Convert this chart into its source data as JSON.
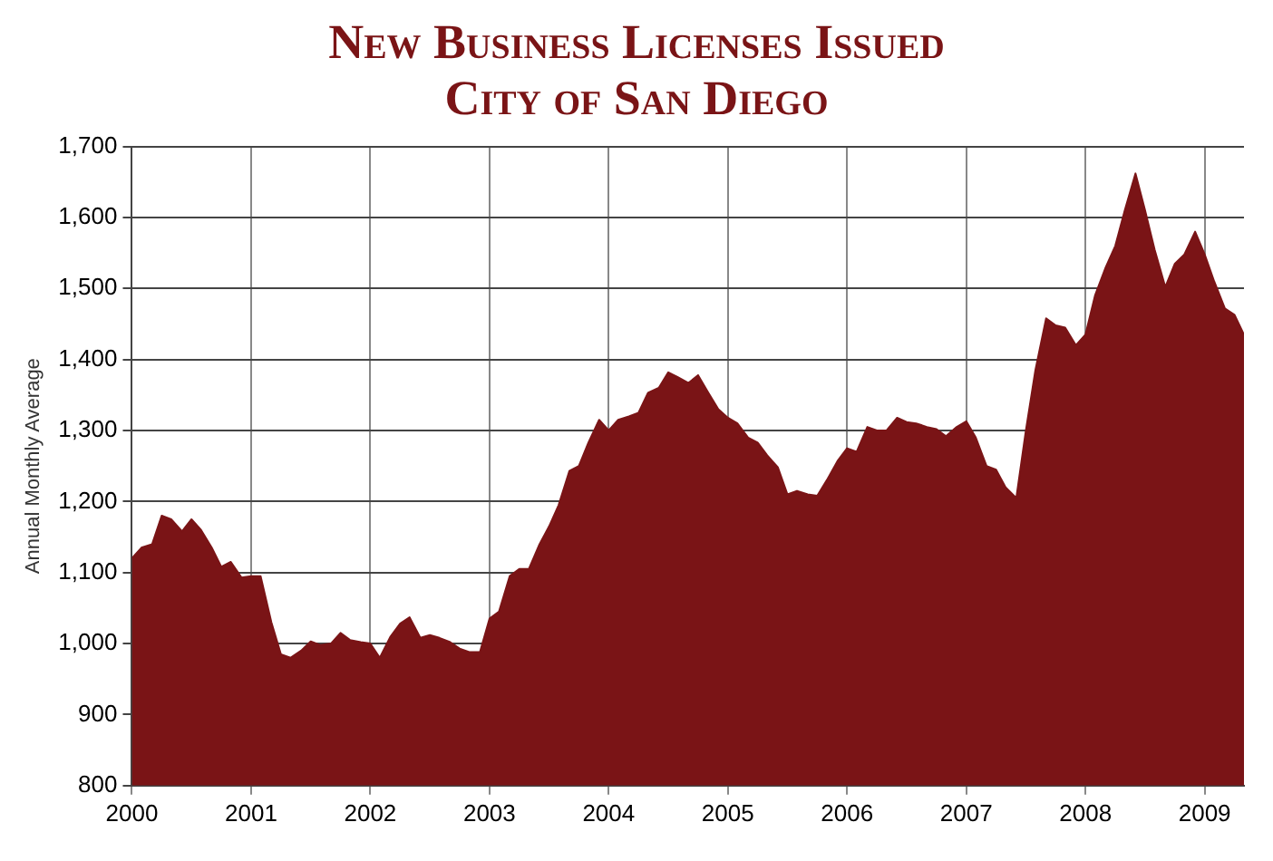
{
  "chart_data": {
    "type": "area",
    "title": "New Business Licenses Issued",
    "subtitle": "City of San Diego",
    "ylabel": "Annual Monthly Average",
    "x": [
      2000,
      2000.08,
      2000.17,
      2000.25,
      2000.33,
      2000.42,
      2000.5,
      2000.58,
      2000.67,
      2000.75,
      2000.83,
      2000.92,
      2001,
      2001.08,
      2001.17,
      2001.25,
      2001.33,
      2001.42,
      2001.5,
      2001.58,
      2001.67,
      2001.75,
      2001.83,
      2001.92,
      2002,
      2002.08,
      2002.17,
      2002.25,
      2002.33,
      2002.42,
      2002.5,
      2002.58,
      2002.67,
      2002.75,
      2002.83,
      2002.92,
      2003,
      2003.08,
      2003.17,
      2003.25,
      2003.33,
      2003.42,
      2003.5,
      2003.58,
      2003.67,
      2003.75,
      2003.83,
      2003.92,
      2004,
      2004.08,
      2004.17,
      2004.25,
      2004.33,
      2004.42,
      2004.5,
      2004.58,
      2004.67,
      2004.75,
      2004.83,
      2004.92,
      2005,
      2005.08,
      2005.17,
      2005.25,
      2005.33,
      2005.42,
      2005.5,
      2005.58,
      2005.67,
      2005.75,
      2005.83,
      2005.92,
      2006,
      2006.08,
      2006.17,
      2006.25,
      2006.33,
      2006.42,
      2006.5,
      2006.58,
      2006.67,
      2006.75,
      2006.83,
      2006.92,
      2007,
      2007.08,
      2007.17,
      2007.25,
      2007.33,
      2007.42,
      2007.5,
      2007.58,
      2007.67,
      2007.75,
      2007.83,
      2007.92,
      2008,
      2008.08,
      2008.17,
      2008.25,
      2008.33,
      2008.42,
      2008.5,
      2008.58,
      2008.67,
      2008.75,
      2008.83,
      2008.92,
      2009,
      2009.08,
      2009.17,
      2009.25,
      2009.33
    ],
    "series": [
      {
        "color": "#7a1416",
        "values": [
          1120,
          1135,
          1140,
          1180,
          1175,
          1158,
          1175,
          1160,
          1135,
          1108,
          1115,
          1093,
          1095,
          1095,
          1030,
          985,
          980,
          990,
          1003,
          998,
          1000,
          1015,
          1005,
          1002,
          1000,
          980,
          1010,
          1028,
          1037,
          1008,
          1012,
          1008,
          1002,
          993,
          988,
          988,
          1035,
          1045,
          1095,
          1105,
          1105,
          1140,
          1165,
          1195,
          1243,
          1250,
          1283,
          1315,
          1300,
          1315,
          1320,
          1325,
          1353,
          1360,
          1382,
          1375,
          1367,
          1378,
          1355,
          1330,
          1318,
          1310,
          1290,
          1283,
          1265,
          1248,
          1210,
          1215,
          1210,
          1208,
          1230,
          1257,
          1275,
          1270,
          1305,
          1300,
          1300,
          1318,
          1312,
          1310,
          1305,
          1302,
          1292,
          1305,
          1313,
          1290,
          1250,
          1245,
          1220,
          1205,
          1300,
          1385,
          1458,
          1448,
          1445,
          1420,
          1435,
          1490,
          1530,
          1560,
          1610,
          1662,
          1610,
          1555,
          1502,
          1535,
          1548,
          1580,
          1548,
          1510,
          1472,
          1463,
          1435
        ]
      }
    ],
    "xlim": [
      2000,
      2009.33
    ],
    "xticks": [
      2000,
      2001,
      2002,
      2003,
      2004,
      2005,
      2006,
      2007,
      2008,
      2009
    ],
    "ylim": [
      800,
      1700
    ],
    "yticks": [
      {
        "value": 800,
        "label": "800"
      },
      {
        "value": 900,
        "label": "900"
      },
      {
        "value": 1000,
        "label": "1,000"
      },
      {
        "value": 1100,
        "label": "1,100"
      },
      {
        "value": 1200,
        "label": "1,200"
      },
      {
        "value": 1300,
        "label": "1,300"
      },
      {
        "value": 1400,
        "label": "1,400"
      },
      {
        "value": 1500,
        "label": "1,500"
      },
      {
        "value": 1600,
        "label": "1,600"
      },
      {
        "value": 1700,
        "label": "1,700"
      }
    ],
    "grid": true,
    "legend": false
  }
}
